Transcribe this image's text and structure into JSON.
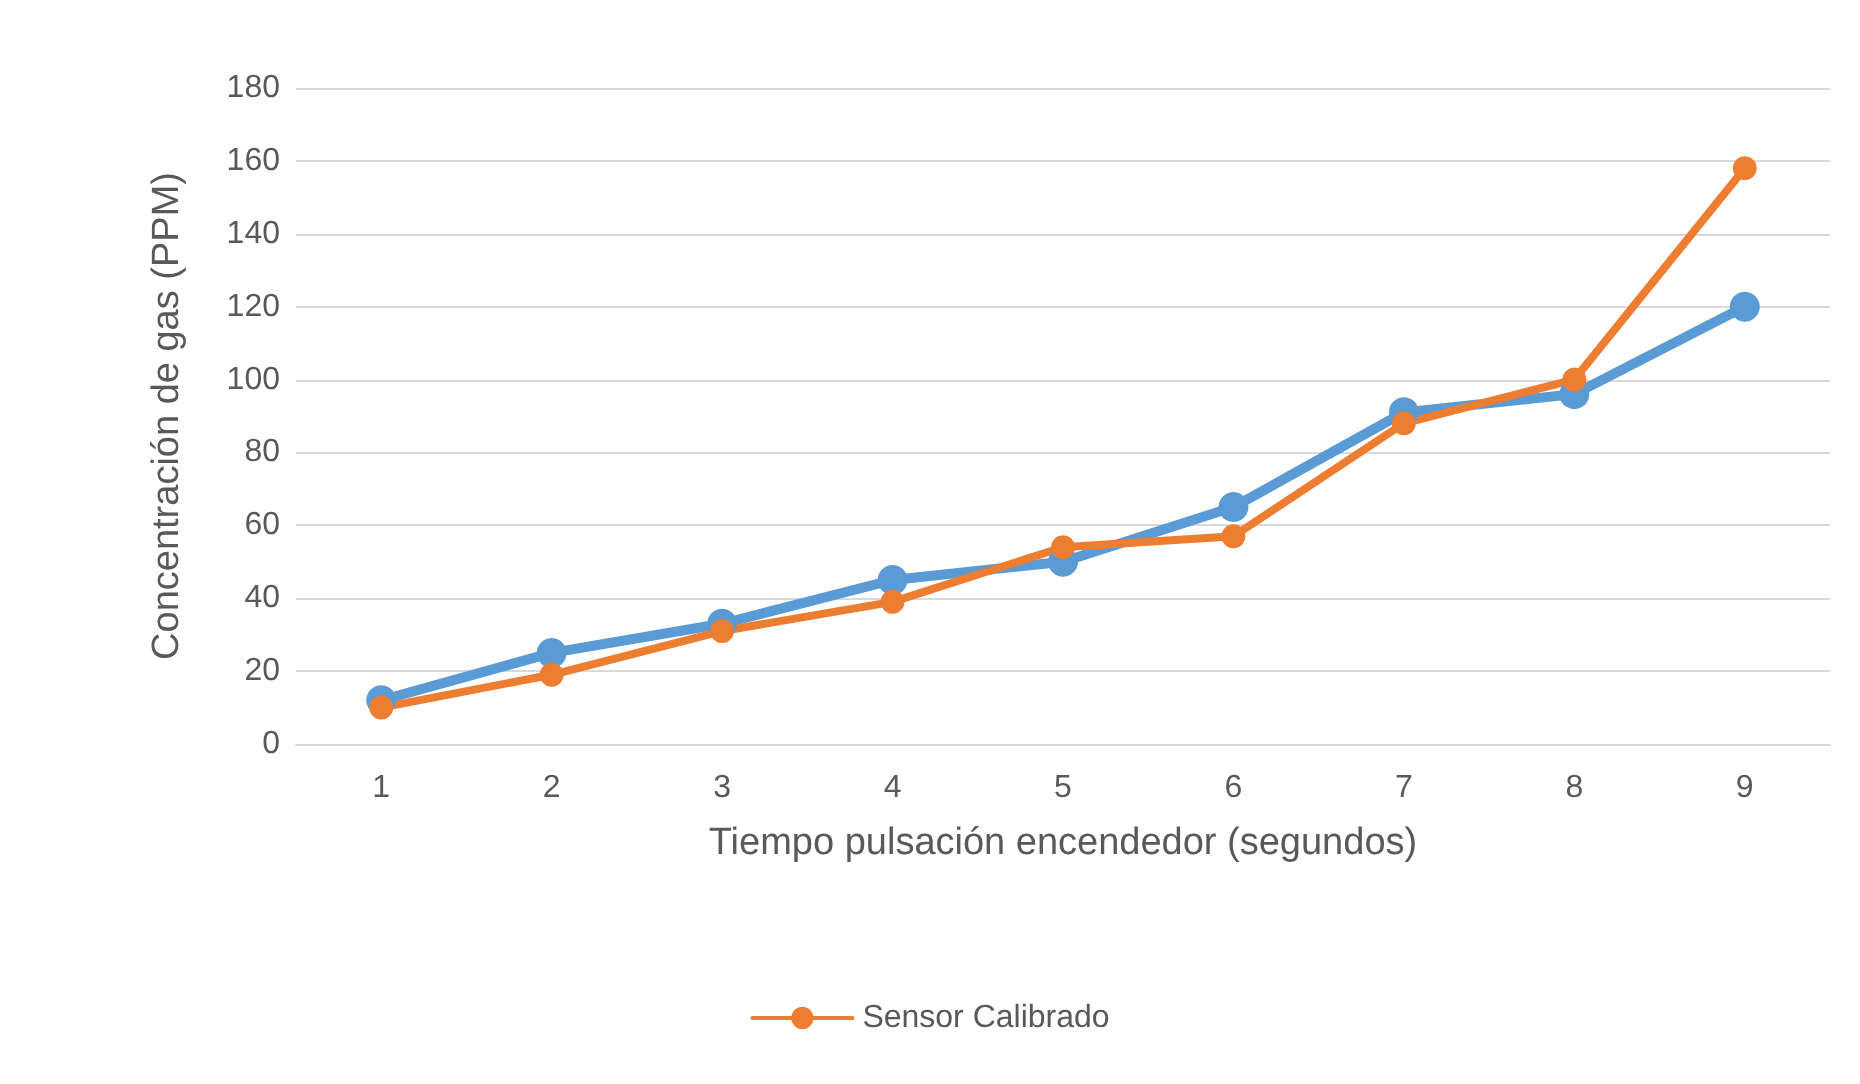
{
  "chart_data": {
    "type": "line",
    "xlabel": "Tiempo pulsación encendedor (segundos)",
    "ylabel": "Concentración de gas (PPM)",
    "categories": [
      "1",
      "2",
      "3",
      "4",
      "5",
      "6",
      "7",
      "8",
      "9"
    ],
    "series": [
      {
        "color": "#5b9bd5",
        "values": [
          12,
          25,
          33,
          45,
          50,
          65,
          91,
          96,
          120
        ]
      },
      {
        "name": "Sensor Calibrado",
        "color": "#ed7d31",
        "values": [
          10,
          19,
          31,
          39,
          54,
          57,
          88,
          100,
          158
        ]
      }
    ],
    "ylim": [
      0,
      180
    ],
    "yticks": [
      0,
      20,
      40,
      60,
      80,
      100,
      120,
      140,
      160,
      180
    ],
    "grid": "y",
    "legend": "bottom",
    "marker": "circle",
    "line_style": "solid"
  }
}
